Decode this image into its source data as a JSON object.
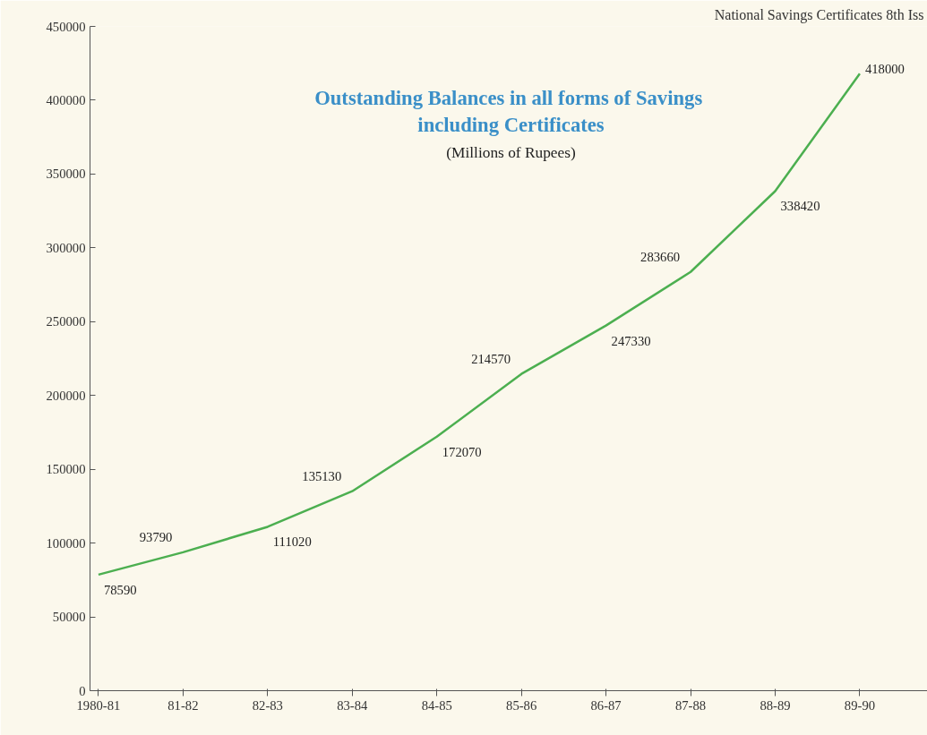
{
  "chart_data": {
    "type": "line",
    "title": "Outstanding Balances in all forms of  Savings\nincluding Certificates",
    "subtitle": "(Millions of Rupees)",
    "annotations": [
      "National Savings Certificates  8th Iss"
    ],
    "categories": [
      "1980-81",
      "81-82",
      "82-83",
      "83-84",
      "84-85",
      "85-86",
      "86-87",
      "87-88",
      "88-89",
      "89-90"
    ],
    "values": [
      78590,
      93790,
      111020,
      135130,
      172070,
      214570,
      247330,
      283660,
      338420,
      418000
    ],
    "color": "#4caf50",
    "ylim": [
      0,
      450000
    ],
    "yticks": [
      0,
      50000,
      100000,
      150000,
      200000,
      250000,
      300000,
      350000,
      400000,
      450000
    ],
    "data_labels": true,
    "grid": false
  }
}
